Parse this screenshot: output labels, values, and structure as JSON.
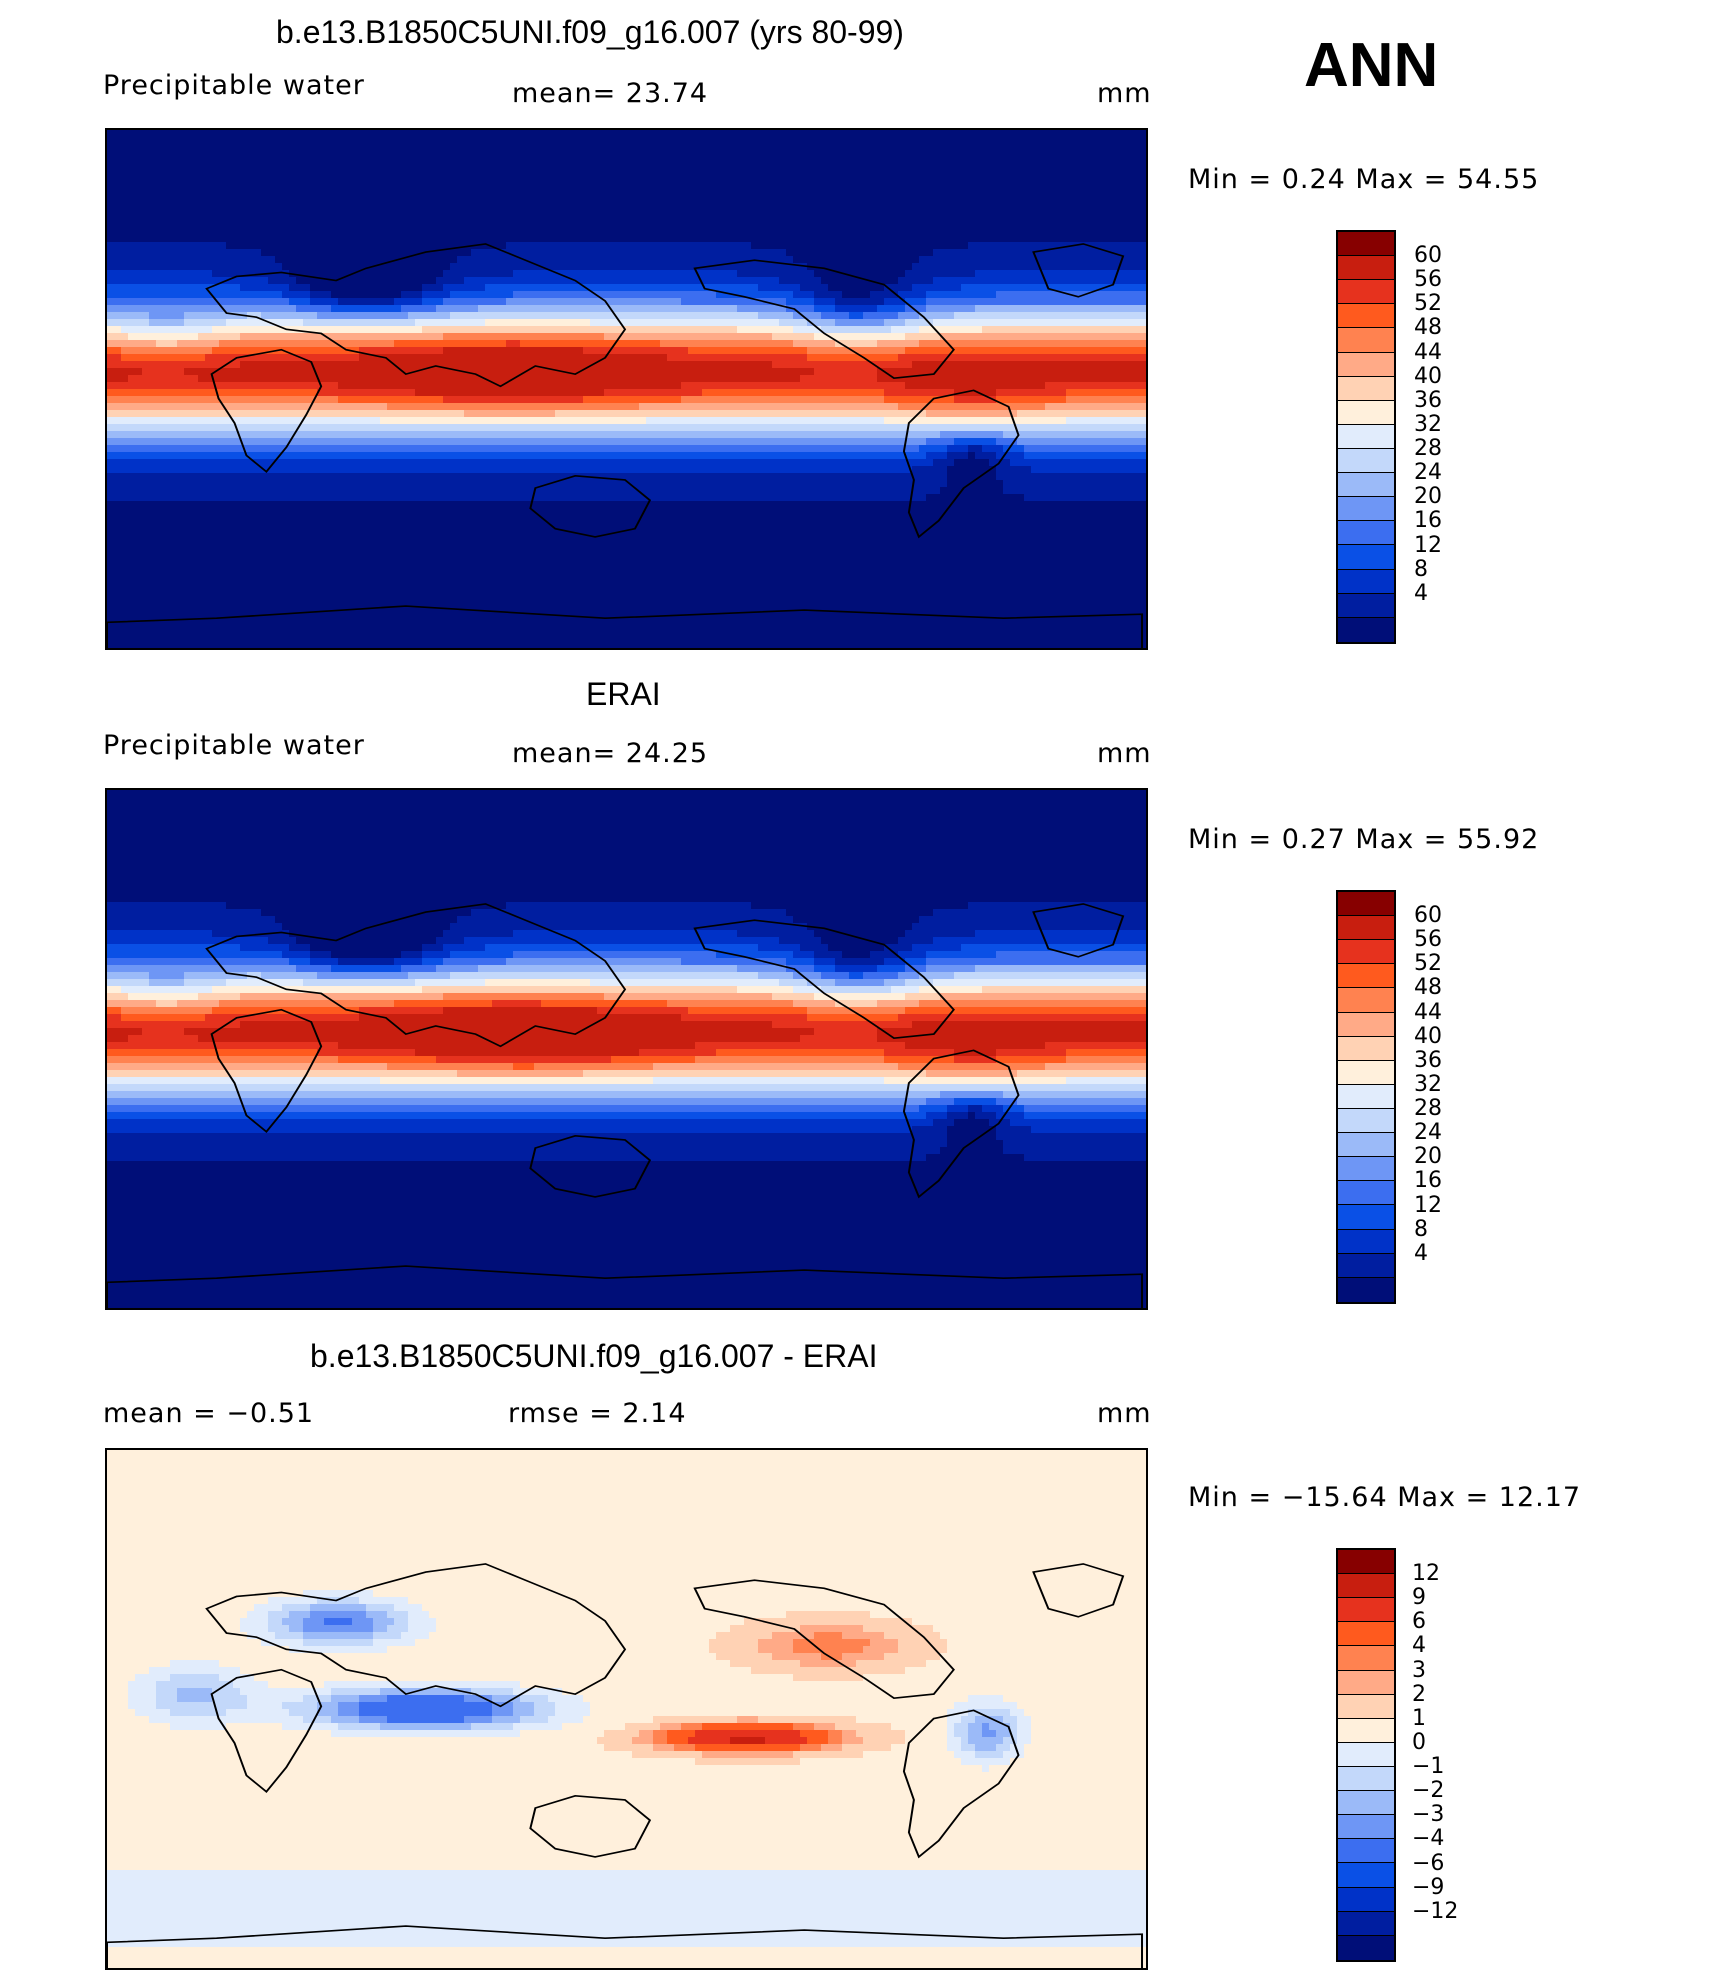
{
  "season": "ANN",
  "colors": {
    "full": [
      "#000e78",
      "#001ea0",
      "#0032c8",
      "#0a50e6",
      "#3c6ef0",
      "#6e96f5",
      "#9bbaf8",
      "#c3d8fa",
      "#e1ecfc",
      "#fff0dc",
      "#ffd2b4",
      "#ffaa87",
      "#ff8250",
      "#ff5a1e",
      "#e6321e",
      "#c81e0f",
      "#870000"
    ],
    "diff": [
      "#000e78",
      "#001ea0",
      "#0032c8",
      "#0a50e6",
      "#3c6ef0",
      "#6e96f5",
      "#9bbaf8",
      "#c3d8fa",
      "#e1ecfc",
      "#fff0dc",
      "#ffd2b4",
      "#ffaa87",
      "#ff8250",
      "#ff5a1e",
      "#e6321e",
      "#c81e0f",
      "#870000"
    ]
  },
  "panels": [
    {
      "title": "b.e13.B1850C5UNI.f09_g16.007 (yrs 80-99)",
      "left_label": "Precipitable  water",
      "center_label": "mean=   23.74",
      "units": "mm",
      "minmax": "Min  =     0.24  Max  =     54.55",
      "levels": [
        "60",
        "56",
        "52",
        "48",
        "44",
        "40",
        "36",
        "32",
        "28",
        "24",
        "20",
        "16",
        "12",
        "8",
        "4"
      ],
      "map_kind": "model"
    },
    {
      "title": "ERAI",
      "left_label": "Precipitable  water",
      "center_label": "mean=   24.25",
      "units": "mm",
      "minmax": "Min  =     0.27  Max  =     55.92",
      "levels": [
        "60",
        "56",
        "52",
        "48",
        "44",
        "40",
        "36",
        "32",
        "28",
        "24",
        "20",
        "16",
        "12",
        "8",
        "4"
      ],
      "map_kind": "obs"
    },
    {
      "title": "b.e13.B1850C5UNI.f09_g16.007 - ERAI",
      "left_label": "mean  =     −0.51",
      "center_label": "rmse  =     2.14",
      "units": "mm",
      "minmax": "Min  = −15.64  Max  =     12.17",
      "levels": [
        "12",
        "9",
        "6",
        "4",
        "3",
        "2",
        "1",
        "0",
        "−1",
        "−2",
        "−3",
        "−4",
        "−6",
        "−9",
        "−12"
      ],
      "map_kind": "diff"
    }
  ]
}
